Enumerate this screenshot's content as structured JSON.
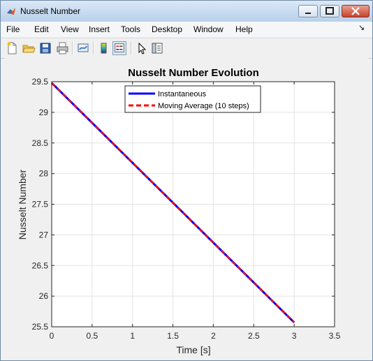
{
  "window": {
    "title": "Nusselt Number"
  },
  "menu": {
    "items": [
      "File",
      "Edit",
      "View",
      "Insert",
      "Tools",
      "Desktop",
      "Window",
      "Help"
    ]
  },
  "toolbar": {
    "icons": [
      "new-figure-icon",
      "open-file-icon",
      "save-icon",
      "print-icon",
      "link-plot-icon",
      "colorbar-icon",
      "legend-icon",
      "pointer-icon",
      "property-editor-icon"
    ]
  },
  "chart_data": {
    "type": "line",
    "title": "Nusselt Number Evolution",
    "xlabel": "Time [s]",
    "ylabel": "Nusselt Number",
    "xlim": [
      0,
      3.5
    ],
    "ylim": [
      25.5,
      29.5
    ],
    "xticks": [
      "0",
      "0.5",
      "1",
      "1.5",
      "2",
      "2.5",
      "3",
      "3.5"
    ],
    "yticks": [
      "25.5",
      "26",
      "26.5",
      "27",
      "27.5",
      "28",
      "28.5",
      "29",
      "29.5"
    ],
    "grid": true,
    "legend_position": "top-center",
    "series": [
      {
        "name": "Instantaneous",
        "color": "#0000ff",
        "style": "solid",
        "x": [
          0,
          3
        ],
        "y": [
          29.48,
          25.57
        ]
      },
      {
        "name": "Moving Average (10 steps)",
        "color": "#ff0000",
        "style": "dashed",
        "x": [
          0,
          3
        ],
        "y": [
          29.48,
          25.57
        ]
      }
    ]
  }
}
